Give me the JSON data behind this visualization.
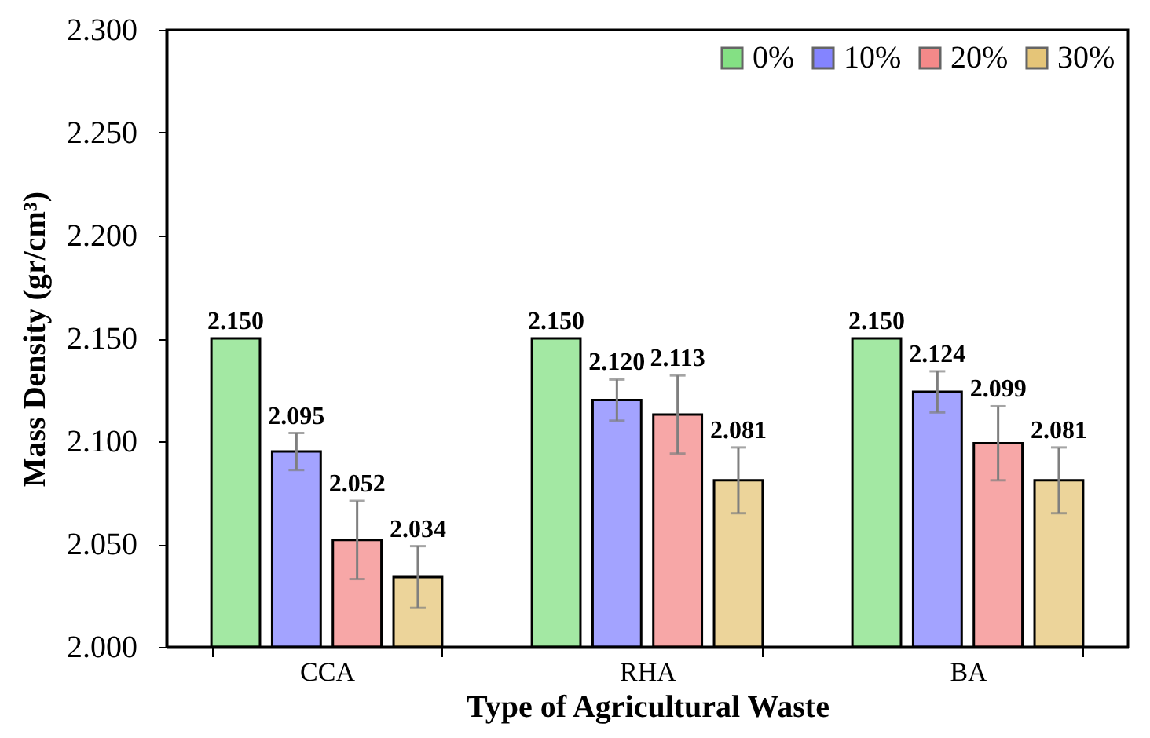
{
  "chart_data": {
    "type": "bar",
    "xlabel": "Type of Agricultural Waste",
    "ylabel": "Mass Density (gr/cm³)",
    "categories": [
      "CCA",
      "RHA",
      "BA"
    ],
    "series": [
      {
        "name": "0%",
        "color": "#33cc33",
        "values": [
          2.15,
          2.15,
          2.15
        ],
        "value_labels": [
          "2.150",
          "2.150",
          "2.150"
        ]
      },
      {
        "name": "10%",
        "color": "#3333ff",
        "values": [
          2.095,
          2.12,
          2.124
        ],
        "errors": [
          0.009,
          0.01,
          0.01
        ],
        "value_labels": [
          "2.095",
          "2.120",
          "2.124"
        ]
      },
      {
        "name": "20%",
        "color": "#ee3b3b",
        "values": [
          2.052,
          2.113,
          2.099
        ],
        "errors": [
          0.019,
          0.019,
          0.018
        ],
        "value_labels": [
          "2.052",
          "2.113",
          "2.099"
        ]
      },
      {
        "name": "30%",
        "color": "#d4a020",
        "values": [
          2.034,
          2.081,
          2.081
        ],
        "errors": [
          0.015,
          0.016,
          0.016
        ],
        "value_labels": [
          "2.034",
          "2.081",
          "2.081"
        ]
      }
    ],
    "ylim": [
      2.0,
      2.3
    ],
    "yticks": [
      {
        "value": 2.0,
        "label": "2.000"
      },
      {
        "value": 2.05,
        "label": "2.050"
      },
      {
        "value": 2.1,
        "label": "2.100"
      },
      {
        "value": 2.15,
        "label": "2.150"
      },
      {
        "value": 2.2,
        "label": "2.200"
      },
      {
        "value": 2.25,
        "label": "2.250"
      },
      {
        "value": 2.3,
        "label": "2.300"
      }
    ],
    "legend": "top right"
  }
}
